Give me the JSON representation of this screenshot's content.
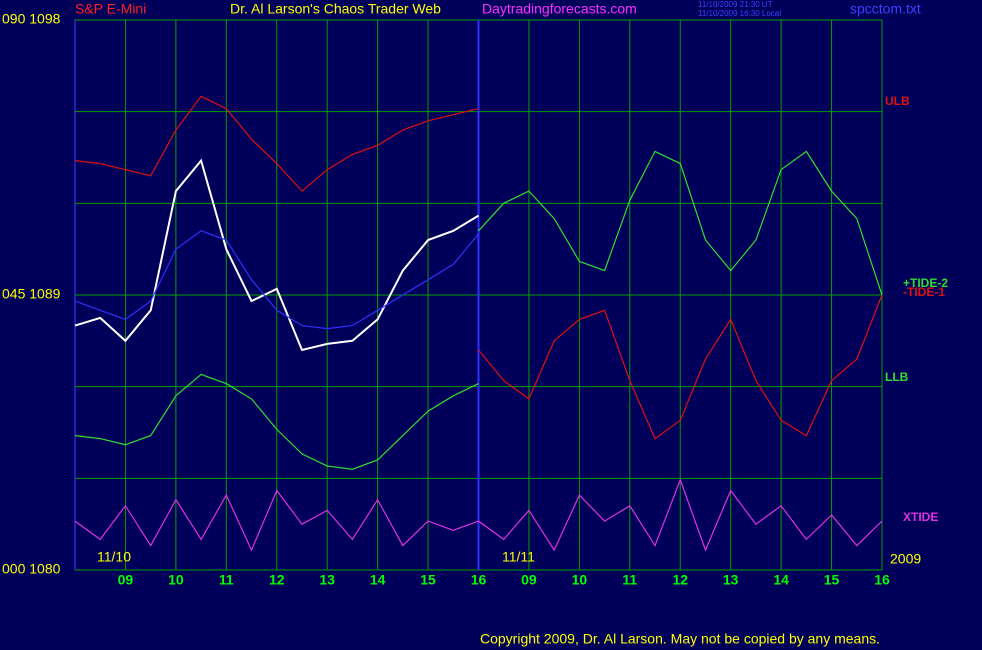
{
  "chart_data": {
    "type": "line",
    "title": "Dr. Al Larson's Chaos Trader Web",
    "instrument": "S&P E-Mini",
    "site": "Daytradingforecasts.com",
    "time_ut": "11/10/2009 21:30 UT",
    "time_local": "11/10/2009 16:30 Local",
    "file": "spcctom.txt",
    "dates": [
      "11/10",
      "11/11",
      "2009"
    ],
    "copyright": "Copyright 2009, Dr. Al Larson. May not be copied by any means.",
    "xlim": [
      0,
      16
    ],
    "ylim": [
      1080,
      1098
    ],
    "grid": true,
    "xticks": [
      {
        "value": 1,
        "label": "09"
      },
      {
        "value": 2,
        "label": "10"
      },
      {
        "value": 3,
        "label": "11"
      },
      {
        "value": 4,
        "label": "12"
      },
      {
        "value": 5,
        "label": "13"
      },
      {
        "value": 6,
        "label": "14"
      },
      {
        "value": 7,
        "label": "15"
      },
      {
        "value": 8,
        "label": "16"
      },
      {
        "value": 9,
        "label": "09"
      },
      {
        "value": 10,
        "label": "10"
      },
      {
        "value": 11,
        "label": "11"
      },
      {
        "value": 12,
        "label": "12"
      },
      {
        "value": 13,
        "label": "13"
      },
      {
        "value": 14,
        "label": "14"
      },
      {
        "value": 15,
        "label": "15"
      },
      {
        "value": 16,
        "label": "16"
      }
    ],
    "yticks": [
      {
        "value": 1080,
        "label": "000 1080"
      },
      {
        "value": 1083,
        "label": null
      },
      {
        "value": 1086,
        "label": null
      },
      {
        "value": 1089,
        "label": "045 1089"
      },
      {
        "value": 1092,
        "label": null
      },
      {
        "value": 1095,
        "label": null
      },
      {
        "value": 1098,
        "label": "090 1098"
      }
    ],
    "x": [
      0,
      0.5,
      1,
      1.5,
      2,
      2.5,
      3,
      3.5,
      4,
      4.5,
      5,
      5.5,
      6,
      6.5,
      7,
      7.5,
      8,
      8.5,
      9,
      9.5,
      10,
      10.5,
      11,
      11.5,
      12,
      12.5,
      13,
      13.5,
      14,
      14.5,
      15,
      15.5,
      16
    ],
    "series": [
      {
        "color": "#ffffff",
        "values": [
          1088.0,
          1088.25,
          1087.5,
          1088.5,
          1092.4,
          1093.4,
          1090.5,
          1088.8,
          1089.2,
          1087.2,
          1087.4,
          1087.5,
          1088.2,
          1089.8,
          1090.8,
          1091.1,
          1091.6,
          null,
          null,
          null,
          null,
          null,
          null,
          null,
          null,
          null,
          null,
          null,
          null,
          null,
          null,
          null,
          null
        ]
      },
      {
        "color": "#3030ff",
        "values": [
          1088.8,
          1088.5,
          1088.2,
          1088.8,
          1090.5,
          1091.1,
          1090.8,
          1089.5,
          1088.5,
          1088.0,
          1087.9,
          1088.0,
          1088.5,
          1089.0,
          1089.5,
          1090.0,
          1091.0,
          null,
          null,
          null,
          null,
          null,
          null,
          null,
          null,
          null,
          null,
          null,
          null,
          null,
          null,
          null,
          null
        ]
      },
      {
        "name": "ULB",
        "color": "#e01010",
        "values": [
          1093.4,
          1093.3,
          1093.1,
          1092.9,
          1094.4,
          1095.5,
          1095.1,
          1094.1,
          1093.3,
          1092.4,
          1093.1,
          1093.6,
          1093.9,
          1094.4,
          1094.7,
          1094.9,
          1095.1,
          null,
          null,
          null,
          null,
          null,
          null,
          null,
          null,
          null,
          null,
          null,
          null,
          null,
          null,
          null,
          null
        ]
      },
      {
        "name": "LLB",
        "color": "#30e030",
        "values": [
          1084.4,
          1084.3,
          1084.1,
          1084.4,
          1085.7,
          1086.4,
          1086.1,
          1085.6,
          1084.6,
          1083.8,
          1083.4,
          1083.3,
          1083.6,
          1084.4,
          1085.2,
          1085.7,
          1086.1,
          null,
          null,
          null,
          null,
          null,
          null,
          null,
          null,
          null,
          null,
          null,
          null,
          null,
          null,
          null,
          null
        ]
      },
      {
        "name": "+TIDE-2",
        "color": "#30e030",
        "values": [
          null,
          null,
          null,
          null,
          null,
          null,
          null,
          null,
          null,
          null,
          null,
          null,
          null,
          null,
          null,
          null,
          1091.1,
          1092.0,
          1092.4,
          1091.5,
          1090.1,
          1089.8,
          1092.1,
          1093.7,
          1093.3,
          1090.8,
          1089.8,
          1090.8,
          1093.1,
          1093.7,
          1092.4,
          1091.5,
          1089.0
        ]
      },
      {
        "name": "-TIDE-1",
        "color": "#e01010",
        "values": [
          null,
          null,
          null,
          null,
          null,
          null,
          null,
          null,
          null,
          null,
          null,
          null,
          null,
          null,
          null,
          null,
          1087.2,
          1086.2,
          1085.6,
          1087.5,
          1088.2,
          1088.5,
          1086.2,
          1084.3,
          1084.9,
          1086.9,
          1088.2,
          1086.2,
          1084.9,
          1084.4,
          1086.2,
          1086.9,
          1089.0
        ]
      },
      {
        "name": "XTIDE",
        "color": "#e030e0",
        "values": [
          1081.6,
          1081.0,
          1082.1,
          1080.8,
          1082.3,
          1081.0,
          1082.45,
          1080.65,
          1082.6,
          1081.5,
          1081.95,
          1081.0,
          1082.3,
          1080.8,
          1081.6,
          1081.3,
          1081.6,
          1081.0,
          1081.95,
          1080.65,
          1082.45,
          1081.6,
          1082.1,
          1080.8,
          1082.95,
          1080.65,
          1082.6,
          1081.5,
          1082.1,
          1081.0,
          1081.8,
          1080.8,
          1081.6
        ]
      }
    ]
  }
}
